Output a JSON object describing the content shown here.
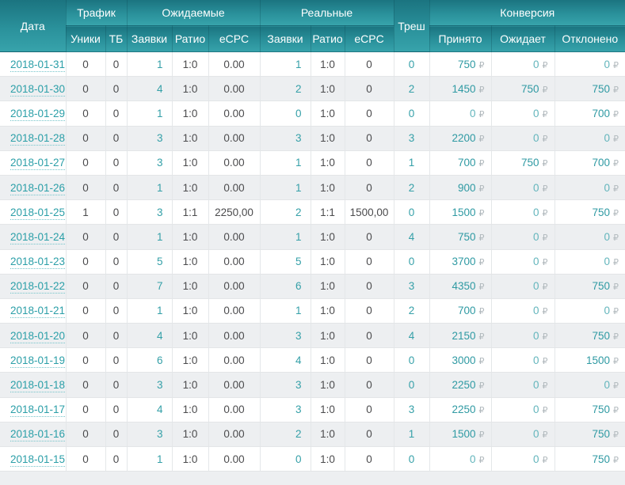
{
  "header": {
    "date": "Дата",
    "traffic": "Трафик",
    "expected": "Ожидаемые",
    "real": "Реальные",
    "trash": "Треш",
    "conversion": "Конверсия",
    "uniques": "Уники",
    "tb": "ТБ",
    "apps": "Заявки",
    "ratio": "Ратио",
    "ecpc": "eCPC",
    "accepted": "Принято",
    "pending": "Ожидает",
    "declined": "Отклонено"
  },
  "currency_symbol": "₽",
  "colors": {
    "header_gradient_top": "#1b7480",
    "header_gradient_bottom": "#37a3ab",
    "link_teal": "#2b9fa8",
    "value_teal": "#35a0a8",
    "zero_teal": "#63b5bc",
    "ruble_gray": "#b2babe",
    "text_gray": "#4b4b4d",
    "row_alt_bg": "#edeff1"
  },
  "rows": [
    {
      "date": "2018-01-31",
      "uniques": "0",
      "tb": "0",
      "expected": {
        "apps": "1",
        "ratio": "1:0",
        "ecpc": "0.00"
      },
      "real": {
        "apps": "1",
        "ratio": "1:0",
        "ecpc": "0"
      },
      "trash": "0",
      "conversion": {
        "accepted": "750",
        "pending": "0",
        "declined": "0"
      }
    },
    {
      "date": "2018-01-30",
      "uniques": "0",
      "tb": "0",
      "expected": {
        "apps": "4",
        "ratio": "1:0",
        "ecpc": "0.00"
      },
      "real": {
        "apps": "2",
        "ratio": "1:0",
        "ecpc": "0"
      },
      "trash": "2",
      "conversion": {
        "accepted": "1450",
        "pending": "750",
        "declined": "750"
      }
    },
    {
      "date": "2018-01-29",
      "uniques": "0",
      "tb": "0",
      "expected": {
        "apps": "1",
        "ratio": "1:0",
        "ecpc": "0.00"
      },
      "real": {
        "apps": "0",
        "ratio": "1:0",
        "ecpc": "0"
      },
      "trash": "0",
      "conversion": {
        "accepted": "0",
        "pending": "0",
        "declined": "700"
      }
    },
    {
      "date": "2018-01-28",
      "uniques": "0",
      "tb": "0",
      "expected": {
        "apps": "3",
        "ratio": "1:0",
        "ecpc": "0.00"
      },
      "real": {
        "apps": "3",
        "ratio": "1:0",
        "ecpc": "0"
      },
      "trash": "3",
      "conversion": {
        "accepted": "2200",
        "pending": "0",
        "declined": "0"
      }
    },
    {
      "date": "2018-01-27",
      "uniques": "0",
      "tb": "0",
      "expected": {
        "apps": "3",
        "ratio": "1:0",
        "ecpc": "0.00"
      },
      "real": {
        "apps": "1",
        "ratio": "1:0",
        "ecpc": "0"
      },
      "trash": "1",
      "conversion": {
        "accepted": "700",
        "pending": "750",
        "declined": "700"
      }
    },
    {
      "date": "2018-01-26",
      "uniques": "0",
      "tb": "0",
      "expected": {
        "apps": "1",
        "ratio": "1:0",
        "ecpc": "0.00"
      },
      "real": {
        "apps": "1",
        "ratio": "1:0",
        "ecpc": "0"
      },
      "trash": "2",
      "conversion": {
        "accepted": "900",
        "pending": "0",
        "declined": "0"
      }
    },
    {
      "date": "2018-01-25",
      "uniques": "1",
      "tb": "0",
      "expected": {
        "apps": "3",
        "ratio": "1:1",
        "ecpc": "2250,00"
      },
      "real": {
        "apps": "2",
        "ratio": "1:1",
        "ecpc": "1500,00"
      },
      "trash": "0",
      "conversion": {
        "accepted": "1500",
        "pending": "0",
        "declined": "750"
      }
    },
    {
      "date": "2018-01-24",
      "uniques": "0",
      "tb": "0",
      "expected": {
        "apps": "1",
        "ratio": "1:0",
        "ecpc": "0.00"
      },
      "real": {
        "apps": "1",
        "ratio": "1:0",
        "ecpc": "0"
      },
      "trash": "4",
      "conversion": {
        "accepted": "750",
        "pending": "0",
        "declined": "0"
      }
    },
    {
      "date": "2018-01-23",
      "uniques": "0",
      "tb": "0",
      "expected": {
        "apps": "5",
        "ratio": "1:0",
        "ecpc": "0.00"
      },
      "real": {
        "apps": "5",
        "ratio": "1:0",
        "ecpc": "0"
      },
      "trash": "0",
      "conversion": {
        "accepted": "3700",
        "pending": "0",
        "declined": "0"
      }
    },
    {
      "date": "2018-01-22",
      "uniques": "0",
      "tb": "0",
      "expected": {
        "apps": "7",
        "ratio": "1:0",
        "ecpc": "0.00"
      },
      "real": {
        "apps": "6",
        "ratio": "1:0",
        "ecpc": "0"
      },
      "trash": "3",
      "conversion": {
        "accepted": "4350",
        "pending": "0",
        "declined": "750"
      }
    },
    {
      "date": "2018-01-21",
      "uniques": "0",
      "tb": "0",
      "expected": {
        "apps": "1",
        "ratio": "1:0",
        "ecpc": "0.00"
      },
      "real": {
        "apps": "1",
        "ratio": "1:0",
        "ecpc": "0"
      },
      "trash": "2",
      "conversion": {
        "accepted": "700",
        "pending": "0",
        "declined": "0"
      }
    },
    {
      "date": "2018-01-20",
      "uniques": "0",
      "tb": "0",
      "expected": {
        "apps": "4",
        "ratio": "1:0",
        "ecpc": "0.00"
      },
      "real": {
        "apps": "3",
        "ratio": "1:0",
        "ecpc": "0"
      },
      "trash": "4",
      "conversion": {
        "accepted": "2150",
        "pending": "0",
        "declined": "750"
      }
    },
    {
      "date": "2018-01-19",
      "uniques": "0",
      "tb": "0",
      "expected": {
        "apps": "6",
        "ratio": "1:0",
        "ecpc": "0.00"
      },
      "real": {
        "apps": "4",
        "ratio": "1:0",
        "ecpc": "0"
      },
      "trash": "0",
      "conversion": {
        "accepted": "3000",
        "pending": "0",
        "declined": "1500"
      }
    },
    {
      "date": "2018-01-18",
      "uniques": "0",
      "tb": "0",
      "expected": {
        "apps": "3",
        "ratio": "1:0",
        "ecpc": "0.00"
      },
      "real": {
        "apps": "3",
        "ratio": "1:0",
        "ecpc": "0"
      },
      "trash": "0",
      "conversion": {
        "accepted": "2250",
        "pending": "0",
        "declined": "0"
      }
    },
    {
      "date": "2018-01-17",
      "uniques": "0",
      "tb": "0",
      "expected": {
        "apps": "4",
        "ratio": "1:0",
        "ecpc": "0.00"
      },
      "real": {
        "apps": "3",
        "ratio": "1:0",
        "ecpc": "0"
      },
      "trash": "3",
      "conversion": {
        "accepted": "2250",
        "pending": "0",
        "declined": "750"
      }
    },
    {
      "date": "2018-01-16",
      "uniques": "0",
      "tb": "0",
      "expected": {
        "apps": "3",
        "ratio": "1:0",
        "ecpc": "0.00"
      },
      "real": {
        "apps": "2",
        "ratio": "1:0",
        "ecpc": "0"
      },
      "trash": "1",
      "conversion": {
        "accepted": "1500",
        "pending": "0",
        "declined": "750"
      }
    },
    {
      "date": "2018-01-15",
      "uniques": "0",
      "tb": "0",
      "expected": {
        "apps": "1",
        "ratio": "1:0",
        "ecpc": "0.00"
      },
      "real": {
        "apps": "0",
        "ratio": "1:0",
        "ecpc": "0"
      },
      "trash": "0",
      "conversion": {
        "accepted": "0",
        "pending": "0",
        "declined": "750"
      }
    }
  ]
}
